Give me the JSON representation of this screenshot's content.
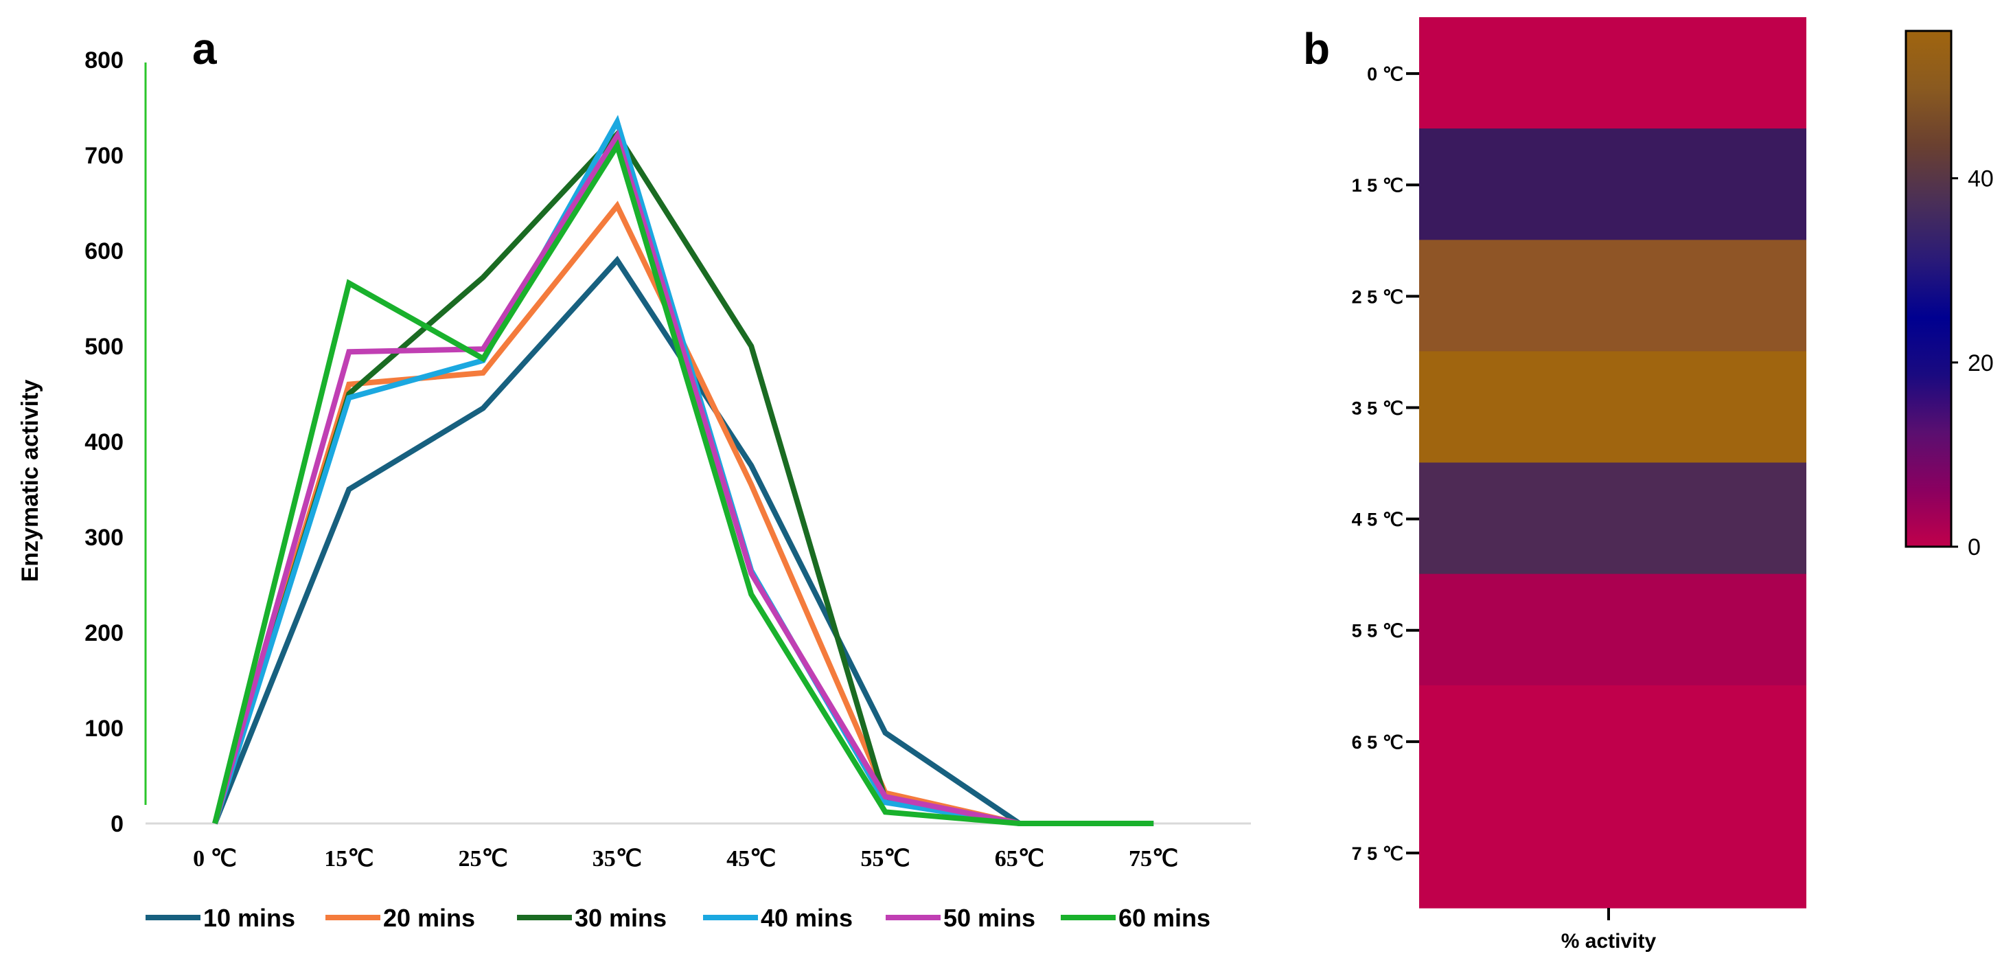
{
  "panel_a": {
    "letter": "a"
  },
  "panel_b": {
    "letter": "b"
  },
  "chart_data": [
    {
      "type": "line",
      "ylabel": "Enzymatic activity",
      "ylim": [
        0,
        800
      ],
      "yticks": [
        "0",
        "100",
        "200",
        "300",
        "400",
        "500",
        "600",
        "700",
        "800"
      ],
      "categories": [
        "0 ℃",
        "15℃",
        "25℃",
        "35℃",
        "45℃",
        "55℃",
        "65℃",
        "75℃"
      ],
      "grid": false,
      "legend_position": "bottom",
      "series": [
        {
          "name": "10 mins",
          "color": "#17607f",
          "values": [
            0,
            350,
            435,
            590,
            375,
            95,
            0,
            0
          ]
        },
        {
          "name": "20 mins",
          "color": "#f47b3c",
          "values": [
            0,
            460,
            472,
            647,
            355,
            32,
            0,
            0
          ]
        },
        {
          "name": "30 mins",
          "color": "#1a6b22",
          "values": [
            0,
            450,
            572,
            722,
            500,
            25,
            0,
            0
          ]
        },
        {
          "name": "40 mins",
          "color": "#1ba8e0",
          "values": [
            0,
            446,
            485,
            735,
            265,
            22,
            0,
            0
          ]
        },
        {
          "name": "50 mins",
          "color": "#c03fb3",
          "values": [
            0,
            494,
            497,
            720,
            262,
            28,
            0,
            0
          ]
        },
        {
          "name": "60 mins",
          "color": "#19b12c",
          "values": [
            0,
            566,
            487,
            710,
            240,
            12,
            0,
            0
          ]
        }
      ]
    },
    {
      "type": "heatmap",
      "rows": [
        "0 ℃",
        "1 5 ℃",
        "2 5 ℃",
        "3 5 ℃",
        "4 5 ℃",
        "5 5 ℃",
        "6 5 ℃",
        "7 5 ℃"
      ],
      "xlabel": "% activity",
      "values": [
        0,
        32,
        50,
        56,
        44,
        3,
        0,
        0
      ],
      "colorbar": {
        "ticks": [
          "0",
          "20",
          "40"
        ],
        "min": 0,
        "max": 56
      },
      "row_colors": [
        "#c0004b",
        "#3a1a5e",
        "#8f5526",
        "#a0650f",
        "#4e2a55",
        "#ab0050",
        "#c0004b",
        "#c0004b"
      ],
      "colorbar_stops": [
        "#c0004b",
        "#8a0060",
        "#5a0f70",
        "#1a0a80",
        "#000090",
        "#2a1a78",
        "#4a2f58",
        "#6a4030",
        "#8a5a20",
        "#a0650f"
      ]
    }
  ]
}
